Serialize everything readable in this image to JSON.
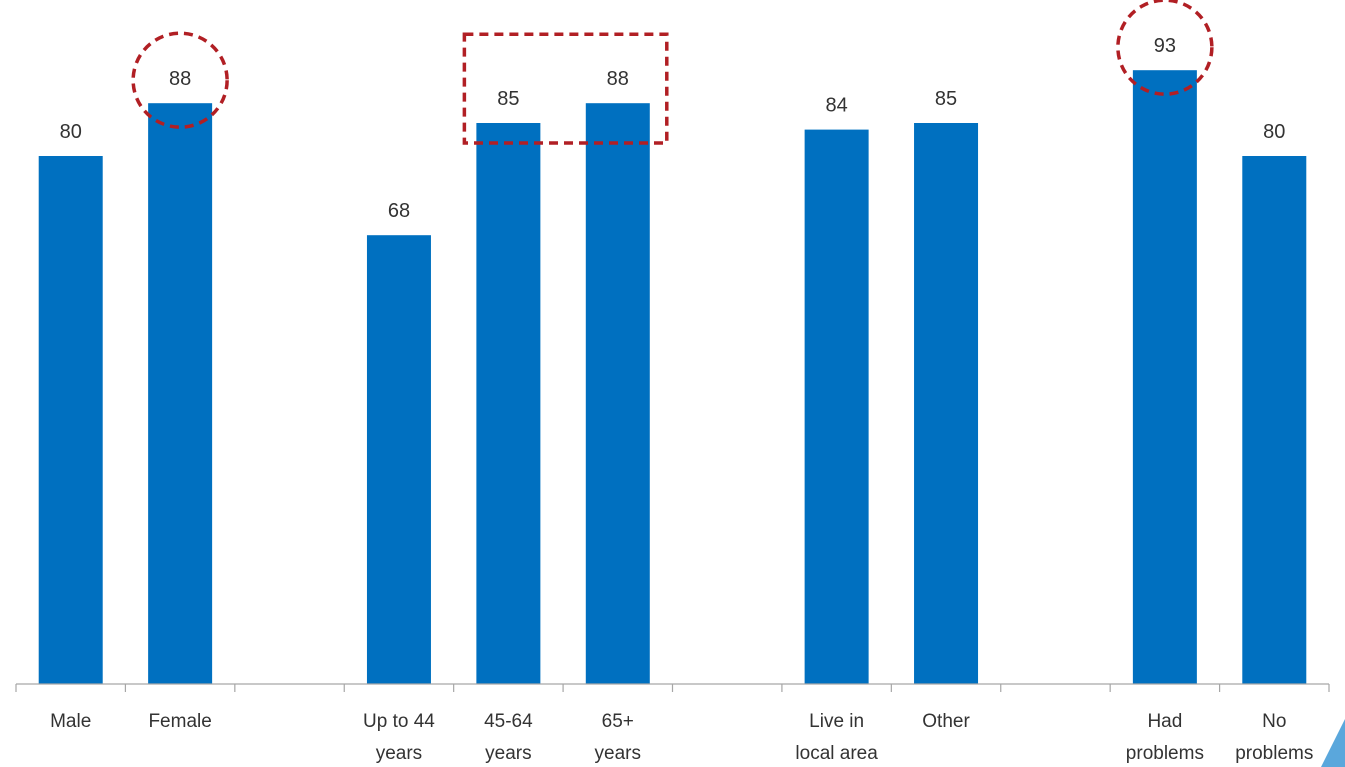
{
  "chart_data": {
    "type": "bar",
    "categories": [
      [
        "Male"
      ],
      [
        "Female"
      ],
      [],
      [
        "Up to 44",
        "years"
      ],
      [
        "45-64",
        "years"
      ],
      [
        "65+",
        "years"
      ],
      [],
      [
        "Live in",
        "local area"
      ],
      [
        "Other"
      ],
      [],
      [
        "Had",
        "problems"
      ],
      [
        "No",
        "problems"
      ]
    ],
    "values": [
      80,
      88,
      null,
      68,
      85,
      88,
      null,
      84,
      85,
      null,
      93,
      80
    ],
    "data_labels": [
      "80",
      "88",
      "",
      "68",
      "85",
      "88",
      "",
      "84",
      "85",
      "",
      "93",
      "80"
    ],
    "ylim": [
      0,
      100
    ],
    "grid": false,
    "legend": "none",
    "title": "",
    "xlabel": "",
    "ylabel": "",
    "highlights": [
      {
        "shape": "circle",
        "category_index": 1
      },
      {
        "shape": "rectangle",
        "category_indices": [
          4,
          5
        ]
      },
      {
        "shape": "circle",
        "category_index": 10
      }
    ]
  },
  "colors": {
    "bar": "#0070c0",
    "highlight": "#b11f24",
    "axis": "#a6a6a6",
    "text": "#333333",
    "corner_accent": "#5aa7dc"
  }
}
